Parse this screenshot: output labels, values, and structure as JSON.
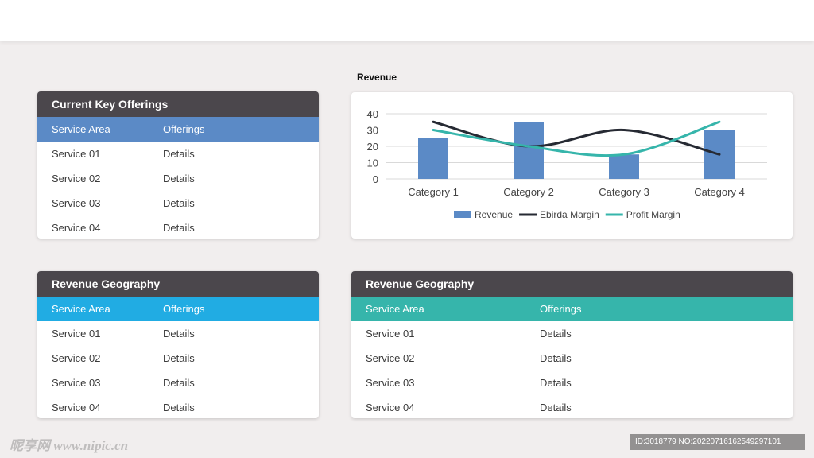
{
  "tables": [
    {
      "title": "Current Key Offerings",
      "header_color": "#5b8ac6",
      "headers": [
        "Service Area",
        "Offerings"
      ],
      "rows": [
        [
          "Service 01",
          "Details"
        ],
        [
          "Service 02",
          "Details"
        ],
        [
          "Service 03",
          "Details"
        ],
        [
          "Service 04",
          "Details"
        ]
      ]
    },
    {
      "title": "Revenue Geography",
      "header_color": "#21ace3",
      "headers": [
        "Service Area",
        "Offerings"
      ],
      "rows": [
        [
          "Service 01",
          "Details"
        ],
        [
          "Service 02",
          "Details"
        ],
        [
          "Service 03",
          "Details"
        ],
        [
          "Service 04",
          "Details"
        ]
      ]
    },
    {
      "title": "Revenue Geography",
      "header_color": "#36b5ab",
      "headers": [
        "Service Area",
        "Offerings"
      ],
      "rows": [
        [
          "Service 01",
          "Details"
        ],
        [
          "Service 02",
          "Details"
        ],
        [
          "Service 03",
          "Details"
        ],
        [
          "Service 04",
          "Details"
        ]
      ]
    }
  ],
  "chart_data": {
    "type": "bar",
    "title": "Revenue",
    "categories": [
      "Category 1",
      "Category 2",
      "Category 3",
      "Category 4"
    ],
    "ylim": [
      0,
      40
    ],
    "yticks": [
      0,
      10,
      20,
      30,
      40
    ],
    "grid": true,
    "legend_position": "bottom",
    "series": [
      {
        "name": "Revenue",
        "kind": "bar",
        "color": "#5b8ac6",
        "values": [
          25,
          35,
          15,
          30
        ]
      },
      {
        "name": "Ebirda Margin",
        "kind": "line",
        "color": "#262a33",
        "values": [
          35,
          20,
          30,
          15
        ]
      },
      {
        "name": "Profit Margin",
        "kind": "line",
        "color": "#36b5ab",
        "values": [
          30,
          20,
          15,
          35
        ]
      }
    ]
  },
  "watermark": {
    "left": "昵享网 www.nipic.cn",
    "right": "ID:3018779 NO:20220716162549297101"
  }
}
